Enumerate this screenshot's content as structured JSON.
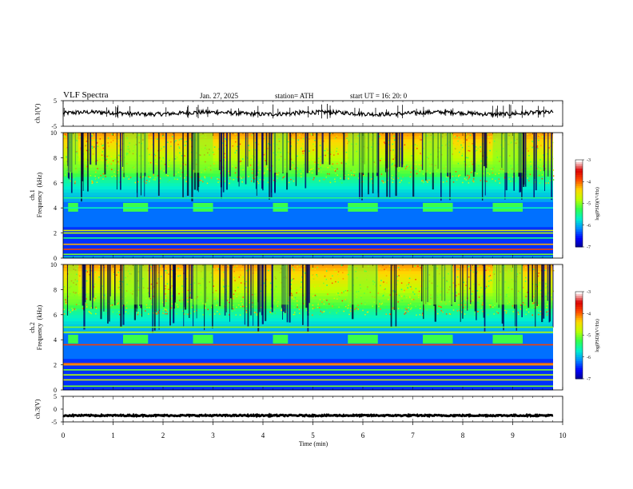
{
  "header": {
    "title": "VLF  Spectra",
    "date": "Jan. 27, 2025",
    "station": "station= ATH",
    "start": "start  UT  =   16: 20: 0"
  },
  "chart_data": [
    {
      "type": "line",
      "name": "ch1-waveform",
      "ylabel": "ch.1(V)",
      "ylim": [
        -5,
        5
      ],
      "yticks": [
        "5",
        "-5"
      ],
      "xlim": [
        0,
        10
      ],
      "level": 0.1
    },
    {
      "type": "heatmap",
      "name": "ch1-spectrogram",
      "ylabel": "ch.1\nFrequency  (kHz)",
      "ylim": [
        0,
        10
      ],
      "yticks": [
        "10",
        "8",
        "6",
        "4",
        "2",
        "0"
      ],
      "xlim": [
        0,
        9.8
      ],
      "colorbar": {
        "label": "log(PSD)(V²/Hz)",
        "range": [
          -7,
          -3
        ],
        "ticks": [
          "-3",
          "-4",
          "-5",
          "-6",
          "-7"
        ]
      },
      "transmitter_on_intervals_min": [
        [
          0.1,
          0.3
        ],
        [
          1.2,
          1.7
        ],
        [
          2.6,
          3.0
        ],
        [
          4.2,
          4.5
        ],
        [
          5.7,
          6.3
        ],
        [
          7.2,
          7.8
        ],
        [
          8.6,
          9.2
        ]
      ]
    },
    {
      "type": "heatmap",
      "name": "ch2-spectrogram",
      "ylabel": "ch.2\nFrequency  (kHz)",
      "ylim": [
        0,
        10
      ],
      "yticks": [
        "10",
        "8",
        "6",
        "4",
        "2",
        "0"
      ],
      "xlim": [
        0,
        9.8
      ],
      "colorbar": {
        "label": "log(PSD)(V²/Hz)",
        "range": [
          -7,
          -3
        ],
        "ticks": [
          "-3",
          "-4",
          "-5",
          "-6",
          "-7"
        ]
      }
    },
    {
      "type": "line",
      "name": "ch3-waveform",
      "ylabel": "ch.3(V)",
      "ylim": [
        -5,
        5
      ],
      "yticks": [
        "5",
        "0",
        "-5"
      ],
      "xlim": [
        0,
        10
      ],
      "level": -2.5,
      "xlabel": "Time  (min)",
      "xticks": [
        "0",
        "1",
        "2",
        "3",
        "4",
        "5",
        "6",
        "7",
        "8",
        "9",
        "10"
      ]
    }
  ]
}
